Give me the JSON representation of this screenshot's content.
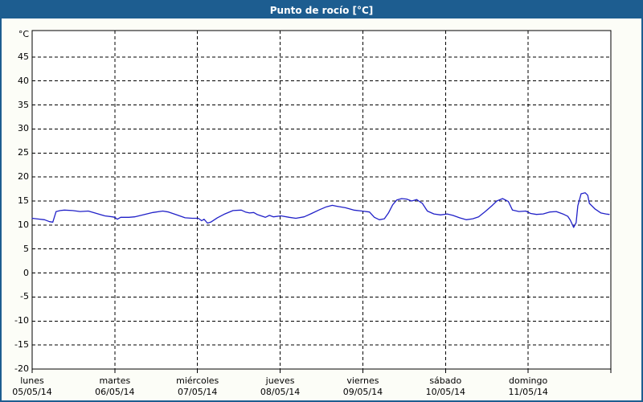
{
  "window": {
    "title": "Punto de rocío [°C]"
  },
  "colors": {
    "frame": "#1d5d90",
    "titlebar_bg": "#1d5d90",
    "titlebar_text": "#ffffff",
    "page_bg": "#fcfdf7",
    "plot_bg": "#ffffff",
    "axis": "#000000",
    "grid": "#000000",
    "series": "#2121c8"
  },
  "chart_data": {
    "type": "line",
    "title": "Punto de rocío [°C]",
    "ylabel": "°C",
    "xlabel": "",
    "ylim": [
      -20,
      50.5
    ],
    "y_tick_step": 5,
    "y_ticks": [
      45,
      40,
      35,
      30,
      25,
      20,
      15,
      10,
      5,
      0,
      -5,
      -10,
      -15,
      -20
    ],
    "grid": {
      "style": "dashed",
      "horizontal": true,
      "vertical": "daily",
      "legend": "none"
    },
    "x_range_days": [
      0,
      7
    ],
    "x_days": [
      {
        "name": "lunes",
        "date": "05/05/14"
      },
      {
        "name": "martes",
        "date": "06/05/14"
      },
      {
        "name": "miércoles",
        "date": "07/05/14"
      },
      {
        "name": "jueves",
        "date": "08/05/14"
      },
      {
        "name": "viernes",
        "date": "09/05/14"
      },
      {
        "name": "sábado",
        "date": "10/05/14"
      },
      {
        "name": "domingo",
        "date": "11/05/14"
      }
    ],
    "series": [
      {
        "name": "Punto de rocío",
        "unit": "°C",
        "color": "#2121c8",
        "points": [
          [
            0.0,
            11.4
          ],
          [
            0.05,
            11.3
          ],
          [
            0.15,
            11.1
          ],
          [
            0.21,
            10.7
          ],
          [
            0.25,
            10.6
          ],
          [
            0.29,
            12.8
          ],
          [
            0.34,
            13.0
          ],
          [
            0.39,
            13.1
          ],
          [
            0.49,
            13.0
          ],
          [
            0.58,
            12.8
          ],
          [
            0.68,
            12.9
          ],
          [
            0.78,
            12.4
          ],
          [
            0.88,
            11.9
          ],
          [
            0.97,
            11.7
          ],
          [
            1.0,
            11.6
          ],
          [
            1.03,
            11.2
          ],
          [
            1.07,
            11.6
          ],
          [
            1.17,
            11.6
          ],
          [
            1.24,
            11.7
          ],
          [
            1.36,
            12.2
          ],
          [
            1.46,
            12.6
          ],
          [
            1.58,
            12.9
          ],
          [
            1.65,
            12.7
          ],
          [
            1.75,
            12.1
          ],
          [
            1.85,
            11.5
          ],
          [
            1.94,
            11.4
          ],
          [
            2.01,
            11.4
          ],
          [
            2.05,
            10.9
          ],
          [
            2.08,
            11.2
          ],
          [
            2.12,
            10.4
          ],
          [
            2.16,
            10.6
          ],
          [
            2.24,
            11.5
          ],
          [
            2.33,
            12.3
          ],
          [
            2.43,
            13.0
          ],
          [
            2.53,
            13.1
          ],
          [
            2.58,
            12.7
          ],
          [
            2.63,
            12.5
          ],
          [
            2.68,
            12.6
          ],
          [
            2.72,
            12.2
          ],
          [
            2.82,
            11.6
          ],
          [
            2.87,
            12.0
          ],
          [
            2.92,
            11.7
          ],
          [
            3.01,
            11.9
          ],
          [
            3.11,
            11.6
          ],
          [
            3.19,
            11.4
          ],
          [
            3.29,
            11.7
          ],
          [
            3.38,
            12.4
          ],
          [
            3.48,
            13.2
          ],
          [
            3.56,
            13.8
          ],
          [
            3.63,
            14.1
          ],
          [
            3.69,
            13.9
          ],
          [
            3.79,
            13.6
          ],
          [
            3.89,
            13.1
          ],
          [
            3.99,
            12.9
          ],
          [
            4.08,
            12.7
          ],
          [
            4.14,
            11.6
          ],
          [
            4.2,
            11.1
          ],
          [
            4.26,
            11.3
          ],
          [
            4.31,
            12.5
          ],
          [
            4.36,
            14.2
          ],
          [
            4.41,
            15.2
          ],
          [
            4.47,
            15.5
          ],
          [
            4.53,
            15.4
          ],
          [
            4.59,
            15.0
          ],
          [
            4.65,
            15.3
          ],
          [
            4.72,
            14.5
          ],
          [
            4.78,
            12.9
          ],
          [
            4.86,
            12.3
          ],
          [
            4.94,
            12.1
          ],
          [
            5.02,
            12.3
          ],
          [
            5.09,
            12.0
          ],
          [
            5.17,
            11.5
          ],
          [
            5.25,
            11.1
          ],
          [
            5.33,
            11.3
          ],
          [
            5.4,
            11.7
          ],
          [
            5.48,
            12.8
          ],
          [
            5.56,
            14.0
          ],
          [
            5.62,
            15.0
          ],
          [
            5.69,
            15.5
          ],
          [
            5.76,
            14.9
          ],
          [
            5.81,
            13.1
          ],
          [
            5.89,
            12.8
          ],
          [
            5.97,
            12.9
          ],
          [
            6.03,
            12.4
          ],
          [
            6.1,
            12.2
          ],
          [
            6.18,
            12.3
          ],
          [
            6.26,
            12.7
          ],
          [
            6.34,
            12.8
          ],
          [
            6.42,
            12.3
          ],
          [
            6.48,
            11.8
          ],
          [
            6.51,
            11.0
          ],
          [
            6.55,
            9.5
          ],
          [
            6.58,
            10.5
          ],
          [
            6.6,
            14.0
          ],
          [
            6.64,
            16.5
          ],
          [
            6.69,
            16.7
          ],
          [
            6.72,
            16.2
          ],
          [
            6.74,
            14.5
          ],
          [
            6.81,
            13.3
          ],
          [
            6.88,
            12.5
          ],
          [
            6.94,
            12.3
          ],
          [
            6.98,
            12.2
          ]
        ]
      }
    ]
  }
}
